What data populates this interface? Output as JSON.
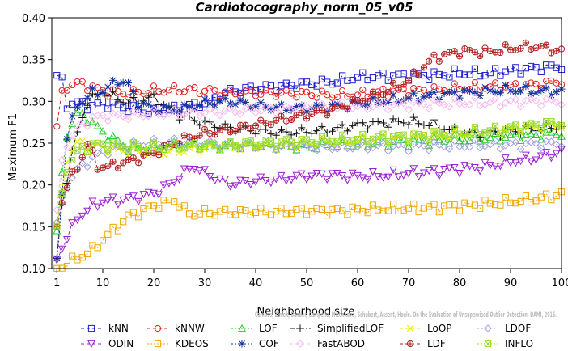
{
  "chart_data": {
    "type": "line",
    "title": "Cardiotocography_norm_05_v05",
    "xlabel": "Neighborhood size",
    "ylabel": "Maximum F1",
    "xlim": [
      0,
      100
    ],
    "ylim": [
      0.1,
      0.4
    ],
    "xticks": [
      1,
      10,
      20,
      30,
      40,
      50,
      60,
      70,
      80,
      90,
      100
    ],
    "yticks": [
      "0.10",
      "0.15",
      "0.20",
      "0.25",
      "0.30",
      "0.35",
      "0.40"
    ],
    "legend_position": "bottom",
    "watermark": "Campos, Zimek, Sander, Campello, Micenkova, Schubert, Assent, Houle. On the Evaluation of Unsupervised Outlier Detection. DAMI, 2015.",
    "series": [
      {
        "name": "kNN",
        "color": "#1f1fd0",
        "marker": "square",
        "dash": "4,3",
        "points": [
          [
            1,
            0.331
          ],
          [
            2,
            0.324
          ],
          [
            3,
            0.296
          ],
          [
            5,
            0.298
          ],
          [
            8,
            0.294
          ],
          [
            10,
            0.298
          ],
          [
            15,
            0.292
          ],
          [
            20,
            0.286
          ],
          [
            25,
            0.292
          ],
          [
            30,
            0.298
          ],
          [
            35,
            0.312
          ],
          [
            40,
            0.316
          ],
          [
            45,
            0.318
          ],
          [
            50,
            0.321
          ],
          [
            55,
            0.323
          ],
          [
            60,
            0.329
          ],
          [
            65,
            0.33
          ],
          [
            70,
            0.331
          ],
          [
            75,
            0.331
          ],
          [
            80,
            0.334
          ],
          [
            85,
            0.333
          ],
          [
            90,
            0.337
          ],
          [
            95,
            0.34
          ],
          [
            100,
            0.342
          ]
        ]
      },
      {
        "name": "kNNW",
        "color": "#e02020",
        "marker": "circle",
        "dash": "4,3",
        "points": [
          [
            1,
            0.27
          ],
          [
            2,
            0.308
          ],
          [
            3,
            0.318
          ],
          [
            5,
            0.322
          ],
          [
            8,
            0.317
          ],
          [
            10,
            0.312
          ],
          [
            15,
            0.309
          ],
          [
            20,
            0.313
          ],
          [
            25,
            0.314
          ],
          [
            30,
            0.313
          ],
          [
            35,
            0.31
          ],
          [
            40,
            0.31
          ],
          [
            45,
            0.31
          ],
          [
            50,
            0.309
          ],
          [
            55,
            0.307
          ],
          [
            60,
            0.308
          ],
          [
            65,
            0.311
          ],
          [
            70,
            0.313
          ],
          [
            75,
            0.313
          ],
          [
            80,
            0.316
          ],
          [
            85,
            0.317
          ],
          [
            90,
            0.318
          ],
          [
            95,
            0.32
          ],
          [
            100,
            0.324
          ]
        ]
      },
      {
        "name": "LOF",
        "color": "#22cc22",
        "marker": "triangle-up",
        "dash": "2,2",
        "points": [
          [
            1,
            0.145
          ],
          [
            2,
            0.21
          ],
          [
            3,
            0.262
          ],
          [
            5,
            0.285
          ],
          [
            7,
            0.28
          ],
          [
            10,
            0.263
          ],
          [
            15,
            0.244
          ],
          [
            20,
            0.243
          ],
          [
            25,
            0.248
          ],
          [
            30,
            0.247
          ],
          [
            35,
            0.246
          ],
          [
            40,
            0.248
          ],
          [
            45,
            0.247
          ],
          [
            50,
            0.246
          ],
          [
            55,
            0.248
          ],
          [
            60,
            0.249
          ],
          [
            65,
            0.251
          ],
          [
            70,
            0.252
          ],
          [
            75,
            0.253
          ],
          [
            80,
            0.254
          ],
          [
            85,
            0.256
          ],
          [
            90,
            0.258
          ],
          [
            95,
            0.259
          ],
          [
            100,
            0.262
          ]
        ]
      },
      {
        "name": "SimplifiedLOF",
        "color": "#111111",
        "marker": "plus",
        "dash": "6,2,2,2",
        "points": [
          [
            1,
            0.11
          ],
          [
            2,
            0.175
          ],
          [
            3,
            0.208
          ],
          [
            4,
            0.238
          ],
          [
            5,
            0.262
          ],
          [
            7,
            0.3
          ],
          [
            10,
            0.312
          ],
          [
            15,
            0.298
          ],
          [
            20,
            0.305
          ],
          [
            25,
            0.283
          ],
          [
            30,
            0.274
          ],
          [
            35,
            0.268
          ],
          [
            40,
            0.265
          ],
          [
            45,
            0.262
          ],
          [
            50,
            0.264
          ],
          [
            55,
            0.266
          ],
          [
            60,
            0.272
          ],
          [
            65,
            0.274
          ],
          [
            70,
            0.276
          ],
          [
            75,
            0.272
          ],
          [
            80,
            0.262
          ],
          [
            85,
            0.262
          ],
          [
            90,
            0.264
          ],
          [
            95,
            0.267
          ],
          [
            100,
            0.27
          ]
        ]
      },
      {
        "name": "LoOP",
        "color": "#e8e800",
        "marker": "x",
        "dash": "4,3",
        "points": [
          [
            1,
            0.152
          ],
          [
            2,
            0.19
          ],
          [
            3,
            0.232
          ],
          [
            5,
            0.25
          ],
          [
            8,
            0.248
          ],
          [
            10,
            0.244
          ],
          [
            15,
            0.24
          ],
          [
            20,
            0.238
          ],
          [
            25,
            0.241
          ],
          [
            30,
            0.244
          ],
          [
            35,
            0.245
          ],
          [
            40,
            0.246
          ],
          [
            45,
            0.247
          ],
          [
            50,
            0.248
          ],
          [
            55,
            0.25
          ],
          [
            60,
            0.252
          ],
          [
            65,
            0.254
          ],
          [
            70,
            0.256
          ],
          [
            75,
            0.258
          ],
          [
            80,
            0.26
          ],
          [
            85,
            0.264
          ],
          [
            90,
            0.266
          ],
          [
            95,
            0.269
          ],
          [
            100,
            0.272
          ]
        ]
      },
      {
        "name": "LDOF",
        "color": "#a0a0e0",
        "marker": "diamond",
        "dash": "2,3",
        "points": [
          [
            1,
            0.155
          ],
          [
            2,
            0.18
          ],
          [
            3,
            0.2
          ],
          [
            5,
            0.218
          ],
          [
            8,
            0.232
          ],
          [
            10,
            0.24
          ],
          [
            15,
            0.247
          ],
          [
            20,
            0.25
          ],
          [
            25,
            0.251
          ],
          [
            30,
            0.25
          ],
          [
            35,
            0.248
          ],
          [
            40,
            0.247
          ],
          [
            45,
            0.246
          ],
          [
            50,
            0.245
          ],
          [
            55,
            0.245
          ],
          [
            60,
            0.246
          ],
          [
            65,
            0.246
          ],
          [
            70,
            0.246
          ],
          [
            75,
            0.247
          ],
          [
            80,
            0.247
          ],
          [
            85,
            0.248
          ],
          [
            90,
            0.248
          ],
          [
            95,
            0.249
          ],
          [
            100,
            0.25
          ]
        ]
      },
      {
        "name": "ODIN",
        "color": "#9a1fd0",
        "marker": "triangle-down",
        "dash": "4,3",
        "points": [
          [
            1,
            0.11
          ],
          [
            2,
            0.125
          ],
          [
            3,
            0.138
          ],
          [
            5,
            0.16
          ],
          [
            8,
            0.175
          ],
          [
            10,
            0.18
          ],
          [
            15,
            0.183
          ],
          [
            20,
            0.19
          ],
          [
            23,
            0.2
          ],
          [
            26,
            0.215
          ],
          [
            28,
            0.222
          ],
          [
            30,
            0.214
          ],
          [
            35,
            0.201
          ],
          [
            40,
            0.205
          ],
          [
            45,
            0.207
          ],
          [
            50,
            0.211
          ],
          [
            55,
            0.212
          ],
          [
            60,
            0.21
          ],
          [
            65,
            0.211
          ],
          [
            70,
            0.214
          ],
          [
            75,
            0.216
          ],
          [
            80,
            0.22
          ],
          [
            85,
            0.222
          ],
          [
            90,
            0.228
          ],
          [
            95,
            0.232
          ],
          [
            100,
            0.24
          ]
        ]
      },
      {
        "name": "KDEOS",
        "color": "#f0a800",
        "marker": "square",
        "dash": "2,2",
        "points": [
          [
            1,
            0.1
          ],
          [
            2,
            0.102
          ],
          [
            3,
            0.106
          ],
          [
            5,
            0.112
          ],
          [
            8,
            0.122
          ],
          [
            10,
            0.135
          ],
          [
            13,
            0.15
          ],
          [
            15,
            0.162
          ],
          [
            20,
            0.175
          ],
          [
            24,
            0.182
          ],
          [
            27,
            0.165
          ],
          [
            30,
            0.167
          ],
          [
            35,
            0.167
          ],
          [
            40,
            0.168
          ],
          [
            45,
            0.168
          ],
          [
            50,
            0.169
          ],
          [
            55,
            0.169
          ],
          [
            60,
            0.17
          ],
          [
            65,
            0.171
          ],
          [
            70,
            0.172
          ],
          [
            75,
            0.173
          ],
          [
            80,
            0.175
          ],
          [
            85,
            0.177
          ],
          [
            90,
            0.18
          ],
          [
            95,
            0.183
          ],
          [
            100,
            0.189
          ]
        ]
      },
      {
        "name": "COF",
        "color": "#1530a0",
        "marker": "star",
        "dash": "2,2",
        "points": [
          [
            1,
            0.112
          ],
          [
            2,
            0.19
          ],
          [
            3,
            0.258
          ],
          [
            5,
            0.295
          ],
          [
            8,
            0.31
          ],
          [
            10,
            0.312
          ],
          [
            13,
            0.325
          ],
          [
            15,
            0.32
          ],
          [
            17,
            0.298
          ],
          [
            20,
            0.292
          ],
          [
            25,
            0.29
          ],
          [
            30,
            0.298
          ],
          [
            35,
            0.3
          ],
          [
            40,
            0.295
          ],
          [
            45,
            0.292
          ],
          [
            50,
            0.292
          ],
          [
            55,
            0.294
          ],
          [
            60,
            0.297
          ],
          [
            65,
            0.3
          ],
          [
            70,
            0.304
          ],
          [
            75,
            0.307
          ],
          [
            80,
            0.31
          ],
          [
            85,
            0.312
          ],
          [
            90,
            0.314
          ],
          [
            95,
            0.312
          ],
          [
            100,
            0.312
          ]
        ]
      },
      {
        "name": "FastABOD",
        "color": "#f8b8f0",
        "marker": "diamond",
        "dash": "4,3",
        "points": [
          [
            1,
            0.17
          ],
          [
            2,
            0.225
          ],
          [
            3,
            0.25
          ],
          [
            5,
            0.268
          ],
          [
            8,
            0.28
          ],
          [
            10,
            0.282
          ],
          [
            15,
            0.283
          ],
          [
            20,
            0.285
          ],
          [
            25,
            0.286
          ],
          [
            30,
            0.287
          ],
          [
            35,
            0.288
          ],
          [
            40,
            0.29
          ],
          [
            45,
            0.291
          ],
          [
            50,
            0.292
          ],
          [
            55,
            0.293
          ],
          [
            60,
            0.294
          ],
          [
            65,
            0.295
          ],
          [
            70,
            0.296
          ],
          [
            75,
            0.297
          ],
          [
            80,
            0.298
          ],
          [
            85,
            0.298
          ],
          [
            90,
            0.299
          ],
          [
            95,
            0.3
          ],
          [
            100,
            0.3
          ]
        ]
      },
      {
        "name": "LDF",
        "color": "#b02020",
        "marker": "circle-plus",
        "dash": "4,3",
        "points": [
          [
            1,
            0.15
          ],
          [
            2,
            0.18
          ],
          [
            3,
            0.2
          ],
          [
            5,
            0.22
          ],
          [
            7,
            0.25
          ],
          [
            9,
            0.222
          ],
          [
            11,
            0.222
          ],
          [
            13,
            0.225
          ],
          [
            15,
            0.228
          ],
          [
            20,
            0.238
          ],
          [
            25,
            0.253
          ],
          [
            30,
            0.262
          ],
          [
            35,
            0.266
          ],
          [
            40,
            0.272
          ],
          [
            45,
            0.278
          ],
          [
            50,
            0.284
          ],
          [
            55,
            0.29
          ],
          [
            60,
            0.3
          ],
          [
            65,
            0.31
          ],
          [
            70,
            0.325
          ],
          [
            75,
            0.352
          ],
          [
            80,
            0.36
          ],
          [
            85,
            0.359
          ],
          [
            90,
            0.363
          ],
          [
            95,
            0.366
          ],
          [
            100,
            0.36
          ]
        ]
      },
      {
        "name": "INFLO",
        "color": "#9adc30",
        "marker": "square-x",
        "dash": "2,2",
        "points": [
          [
            1,
            0.15
          ],
          [
            2,
            0.185
          ],
          [
            3,
            0.22
          ],
          [
            5,
            0.24
          ],
          [
            8,
            0.248
          ],
          [
            10,
            0.248
          ],
          [
            15,
            0.246
          ],
          [
            20,
            0.245
          ],
          [
            25,
            0.246
          ],
          [
            30,
            0.247
          ],
          [
            35,
            0.248
          ],
          [
            40,
            0.25
          ],
          [
            45,
            0.251
          ],
          [
            50,
            0.252
          ],
          [
            55,
            0.254
          ],
          [
            60,
            0.255
          ],
          [
            65,
            0.257
          ],
          [
            70,
            0.258
          ],
          [
            75,
            0.26
          ],
          [
            80,
            0.262
          ],
          [
            85,
            0.264
          ],
          [
            90,
            0.268
          ],
          [
            95,
            0.272
          ],
          [
            100,
            0.275
          ]
        ]
      }
    ]
  }
}
